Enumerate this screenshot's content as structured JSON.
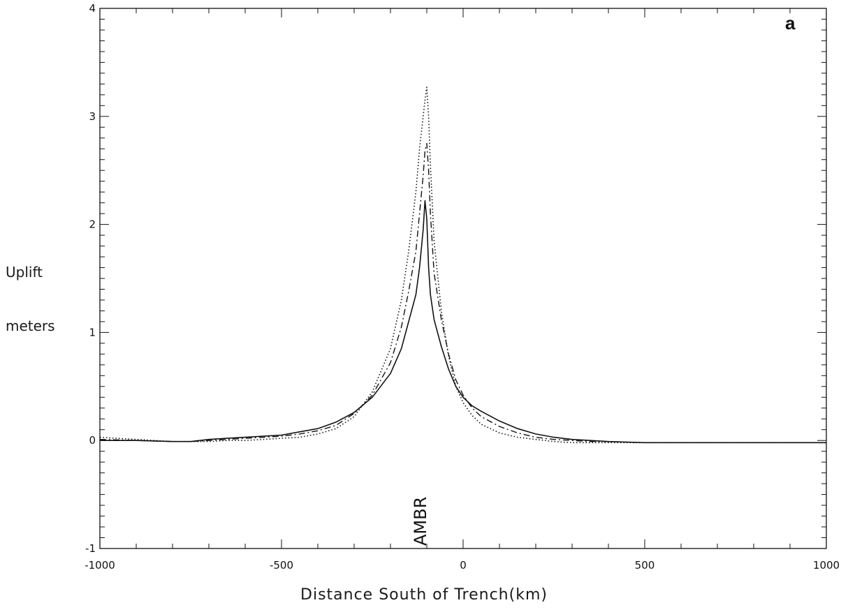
{
  "chart_data": {
    "type": "line",
    "panel_label": "a",
    "ylabel_line1": "Uplift",
    "ylabel_line2": "meters",
    "xlabel": "Distance South of Trench(km)",
    "annotation": "AMBR",
    "annotation_x": -115,
    "xlim": [
      -1000,
      1000
    ],
    "ylim": [
      -1,
      4
    ],
    "xticks": [
      -1000,
      -500,
      0,
      500,
      1000
    ],
    "xtick_labels": [
      "-1000",
      "-500",
      "0",
      "500",
      "1000"
    ],
    "yticks": [
      -1,
      0,
      1,
      2,
      3,
      4
    ],
    "ytick_labels": [
      "-1",
      "0",
      "1",
      "2",
      "3",
      "4"
    ],
    "grid": false,
    "series": [
      {
        "style": "solid",
        "x": [
          -1000,
          -900,
          -800,
          -750,
          -700,
          -650,
          -600,
          -550,
          -500,
          -450,
          -400,
          -350,
          -300,
          -250,
          -200,
          -170,
          -150,
          -130,
          -120,
          -110,
          -105,
          -100,
          -95,
          -90,
          -80,
          -60,
          -40,
          -20,
          0,
          25,
          50,
          100,
          150,
          200,
          250,
          300,
          350,
          400,
          500,
          600,
          700,
          800,
          900,
          1000
        ],
        "y": [
          0.0,
          0.0,
          -0.01,
          -0.01,
          0.01,
          0.02,
          0.03,
          0.04,
          0.05,
          0.08,
          0.11,
          0.17,
          0.26,
          0.4,
          0.62,
          0.85,
          1.1,
          1.35,
          1.6,
          1.95,
          2.22,
          2.05,
          1.6,
          1.35,
          1.12,
          0.87,
          0.66,
          0.5,
          0.4,
          0.32,
          0.27,
          0.18,
          0.11,
          0.06,
          0.03,
          0.01,
          0.0,
          -0.01,
          -0.02,
          -0.02,
          -0.02,
          -0.02,
          -0.02,
          -0.02
        ]
      },
      {
        "style": "dashdot",
        "x": [
          -1000,
          -900,
          -800,
          -750,
          -700,
          -650,
          -600,
          -550,
          -500,
          -450,
          -400,
          -350,
          -300,
          -250,
          -200,
          -170,
          -150,
          -130,
          -120,
          -110,
          -105,
          -100,
          -95,
          -90,
          -80,
          -60,
          -40,
          -20,
          0,
          25,
          50,
          100,
          150,
          200,
          250,
          300,
          350,
          400,
          500,
          600,
          700,
          800,
          900,
          1000
        ],
        "y": [
          0.01,
          0.0,
          -0.01,
          -0.01,
          0.0,
          0.01,
          0.02,
          0.03,
          0.04,
          0.06,
          0.09,
          0.14,
          0.25,
          0.42,
          0.72,
          1.05,
          1.38,
          1.75,
          2.1,
          2.45,
          2.68,
          2.75,
          2.5,
          2.1,
          1.55,
          1.12,
          0.8,
          0.56,
          0.42,
          0.3,
          0.22,
          0.13,
          0.07,
          0.03,
          0.01,
          0.0,
          -0.01,
          -0.01,
          -0.02,
          -0.02,
          -0.02,
          -0.02,
          -0.02,
          -0.02
        ]
      },
      {
        "style": "dotted",
        "x": [
          -1000,
          -900,
          -800,
          -750,
          -700,
          -650,
          -600,
          -550,
          -500,
          -450,
          -400,
          -350,
          -300,
          -250,
          -200,
          -170,
          -150,
          -130,
          -120,
          -110,
          -105,
          -100,
          -95,
          -90,
          -80,
          -60,
          -40,
          -20,
          0,
          25,
          50,
          100,
          150,
          200,
          250,
          300,
          350,
          400,
          500,
          600,
          700,
          800,
          900,
          1000
        ],
        "y": [
          0.03,
          0.01,
          -0.01,
          -0.01,
          -0.01,
          0.0,
          0.0,
          0.01,
          0.02,
          0.03,
          0.06,
          0.11,
          0.22,
          0.45,
          0.85,
          1.3,
          1.75,
          2.3,
          2.7,
          3.0,
          3.15,
          3.27,
          3.0,
          2.55,
          1.85,
          1.2,
          0.78,
          0.5,
          0.35,
          0.23,
          0.15,
          0.07,
          0.03,
          0.01,
          -0.01,
          -0.02,
          -0.02,
          -0.02,
          -0.02,
          -0.02,
          -0.02,
          -0.02,
          -0.02,
          -0.02
        ]
      }
    ]
  }
}
